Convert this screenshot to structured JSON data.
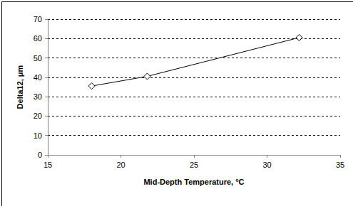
{
  "chart_data": {
    "type": "line",
    "xlabel": "Mid-Depth Temperature, °C",
    "ylabel": "Delta12, μm",
    "x": [
      18,
      21.8,
      32.2
    ],
    "values": [
      35.5,
      40.5,
      60.5
    ],
    "color": "#000000",
    "marker": "diamond",
    "xlim": [
      15,
      35
    ],
    "xticks": [
      15,
      20,
      25,
      30,
      35
    ],
    "ylim": [
      0,
      70
    ],
    "yticks": [
      0,
      10,
      20,
      30,
      40,
      50,
      60,
      70
    ],
    "grid": true
  }
}
